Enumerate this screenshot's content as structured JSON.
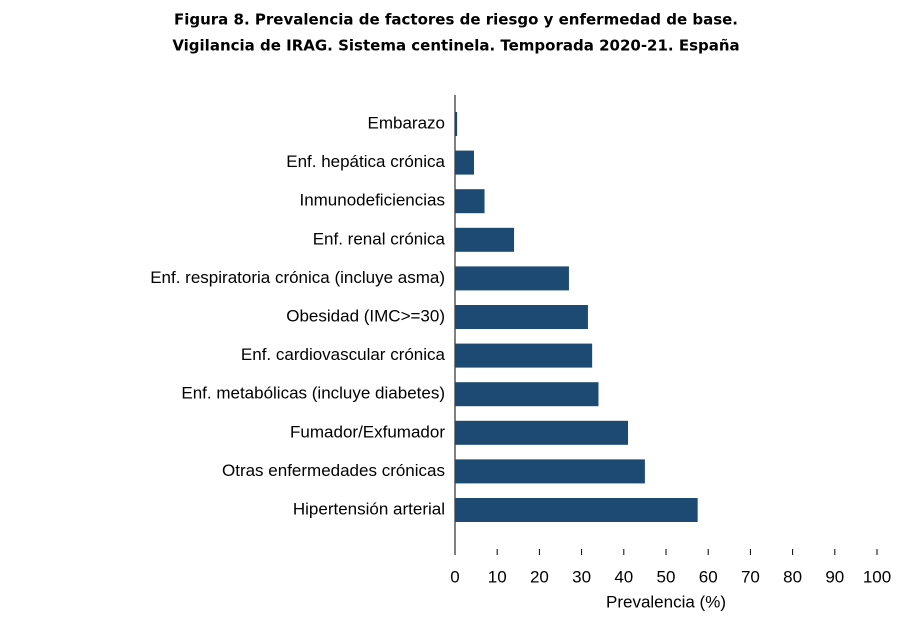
{
  "chart_data": {
    "type": "hbar",
    "title": "Figura 8. Prevalencia de factores de riesgo y enfermedad de base.",
    "subtitle": "Vigilancia de IRAG. Sistema centinela. Temporada 2020-21. España",
    "x_label": "Prevalencia (%)",
    "categories": [
      "Embarazo",
      "Enf. hepática crónica",
      "Inmunodeficiencias",
      "Enf. renal crónica",
      "Enf. respiratoria crónica (incluye asma)",
      "Obesidad (IMC>=30)",
      "Enf. cardiovascular crónica",
      "Enf. metabólicas (incluye diabetes)",
      "Fumador/Exfumador",
      "Otras enfermedades crónicas",
      "Hipertensión arterial"
    ],
    "values": [
      0.5,
      4.5,
      7,
      14,
      27,
      31.5,
      32.5,
      34,
      41,
      45,
      57.5
    ],
    "color": "#1c4a72",
    "xlim": [
      0,
      100
    ],
    "xticks": [
      0,
      10,
      20,
      30,
      40,
      50,
      60,
      70,
      80,
      90,
      100
    ]
  }
}
